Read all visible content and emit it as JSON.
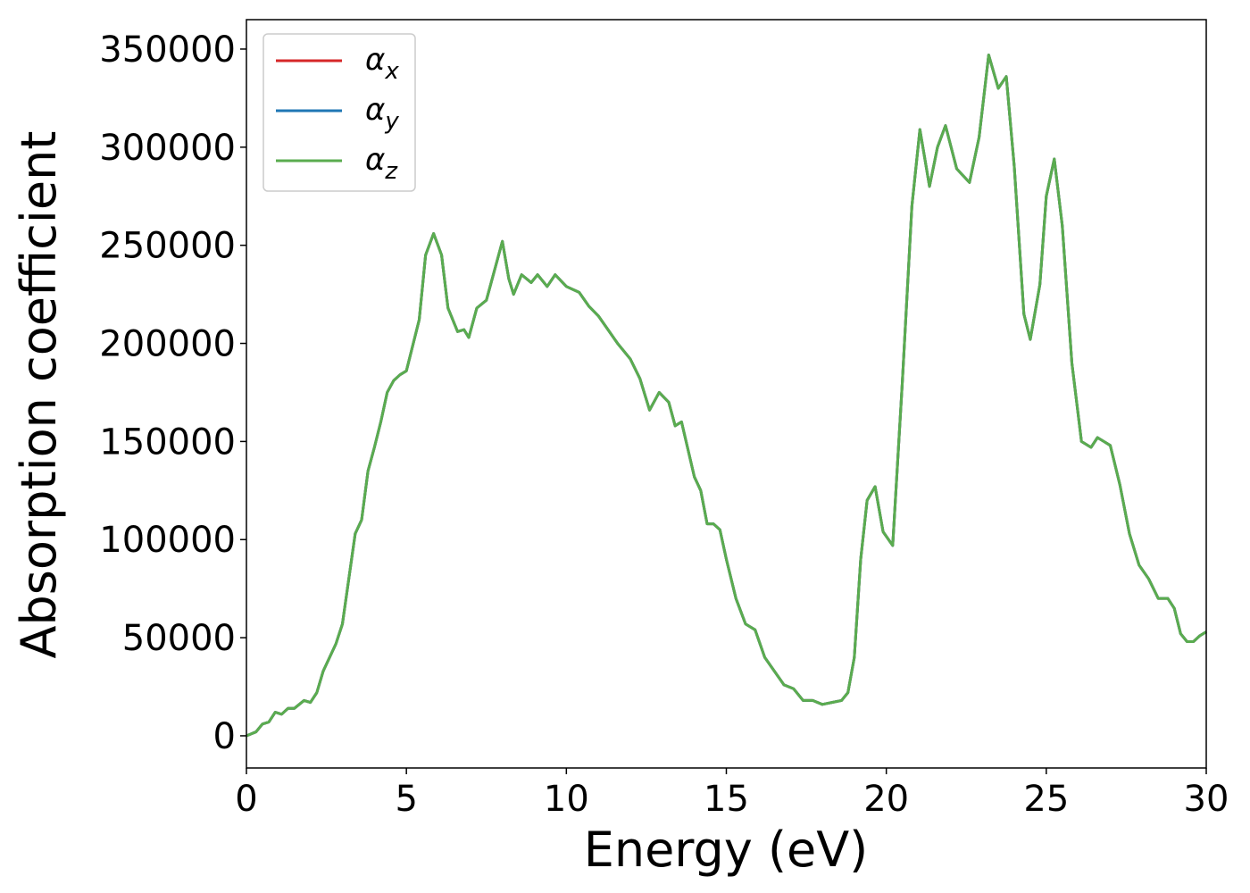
{
  "chart_data": {
    "type": "line",
    "x_label": "Energy (eV)",
    "y_label": "Absorption coefficient",
    "x": [
      0,
      0.3,
      0.5,
      0.7,
      0.9,
      1.1,
      1.3,
      1.5,
      1.8,
      2.0,
      2.2,
      2.4,
      2.6,
      2.8,
      3.0,
      3.2,
      3.4,
      3.6,
      3.8,
      4.0,
      4.2,
      4.4,
      4.6,
      4.8,
      5.0,
      5.2,
      5.4,
      5.6,
      5.85,
      6.1,
      6.3,
      6.6,
      6.8,
      6.95,
      7.2,
      7.5,
      7.8,
      8.0,
      8.2,
      8.35,
      8.6,
      8.9,
      9.1,
      9.4,
      9.65,
      10.0,
      10.4,
      10.7,
      11.0,
      11.3,
      11.6,
      12.0,
      12.3,
      12.6,
      12.9,
      13.2,
      13.4,
      13.6,
      13.8,
      14.0,
      14.2,
      14.4,
      14.6,
      14.8,
      15.0,
      15.3,
      15.6,
      15.9,
      16.2,
      16.5,
      16.8,
      17.1,
      17.4,
      17.7,
      18.0,
      18.3,
      18.6,
      18.8,
      19.0,
      19.2,
      19.4,
      19.65,
      19.9,
      20.2,
      20.5,
      20.8,
      21.05,
      21.35,
      21.6,
      21.85,
      22.2,
      22.6,
      22.9,
      23.2,
      23.5,
      23.75,
      24.0,
      24.3,
      24.5,
      24.8,
      25.0,
      25.25,
      25.5,
      25.8,
      26.1,
      26.4,
      26.6,
      26.8,
      27.0,
      27.3,
      27.6,
      27.9,
      28.2,
      28.5,
      28.8,
      29.0,
      29.2,
      29.4,
      29.6,
      29.8,
      30.0
    ],
    "series": [
      {
        "name": "αx",
        "color": "#d62728",
        "values": [
          0,
          2000,
          6000,
          7000,
          12000,
          11000,
          14000,
          14000,
          18000,
          17000,
          22000,
          33000,
          40000,
          47000,
          57000,
          80000,
          103000,
          110000,
          135000,
          147000,
          160000,
          175000,
          181000,
          184000,
          186000,
          199000,
          212000,
          245000,
          256000,
          245000,
          218000,
          206000,
          207000,
          203000,
          218000,
          222000,
          240000,
          252000,
          233000,
          225000,
          235000,
          231000,
          235000,
          229000,
          235000,
          229000,
          226000,
          219000,
          214000,
          207000,
          200000,
          192000,
          182000,
          166000,
          175000,
          170000,
          158000,
          160000,
          146000,
          132000,
          125000,
          108000,
          108000,
          105000,
          90000,
          70000,
          57000,
          54000,
          40000,
          33000,
          26000,
          24000,
          18000,
          18000,
          16000,
          17000,
          18000,
          22000,
          40000,
          90000,
          120000,
          127000,
          104000,
          97000,
          180000,
          270000,
          309000,
          280000,
          300000,
          311000,
          289000,
          282000,
          305000,
          347000,
          330000,
          336000,
          290000,
          215000,
          202000,
          230000,
          275000,
          294000,
          260000,
          190000,
          150000,
          147000,
          152000,
          150000,
          148000,
          128000,
          103000,
          87000,
          80000,
          70000,
          70000,
          65000,
          52000,
          48000,
          48000,
          51000,
          53000
        ]
      },
      {
        "name": "αy",
        "color": "#1f77b4",
        "values": [
          0,
          2000,
          6000,
          7000,
          12000,
          11000,
          14000,
          14000,
          18000,
          17000,
          22000,
          33000,
          40000,
          47000,
          57000,
          80000,
          103000,
          110000,
          135000,
          147000,
          160000,
          175000,
          181000,
          184000,
          186000,
          199000,
          212000,
          245000,
          256000,
          245000,
          218000,
          206000,
          207000,
          203000,
          218000,
          222000,
          240000,
          252000,
          233000,
          225000,
          235000,
          231000,
          235000,
          229000,
          235000,
          229000,
          226000,
          219000,
          214000,
          207000,
          200000,
          192000,
          182000,
          166000,
          175000,
          170000,
          158000,
          160000,
          146000,
          132000,
          125000,
          108000,
          108000,
          105000,
          90000,
          70000,
          57000,
          54000,
          40000,
          33000,
          26000,
          24000,
          18000,
          18000,
          16000,
          17000,
          18000,
          22000,
          40000,
          90000,
          120000,
          127000,
          104000,
          97000,
          180000,
          270000,
          309000,
          280000,
          300000,
          311000,
          289000,
          282000,
          305000,
          347000,
          330000,
          336000,
          290000,
          215000,
          202000,
          230000,
          275000,
          294000,
          260000,
          190000,
          150000,
          147000,
          152000,
          150000,
          148000,
          128000,
          103000,
          87000,
          80000,
          70000,
          70000,
          65000,
          52000,
          48000,
          48000,
          51000,
          53000
        ]
      },
      {
        "name": "αz",
        "color": "#5aac4f",
        "values": [
          0,
          2000,
          6000,
          7000,
          12000,
          11000,
          14000,
          14000,
          18000,
          17000,
          22000,
          33000,
          40000,
          47000,
          57000,
          80000,
          103000,
          110000,
          135000,
          147000,
          160000,
          175000,
          181000,
          184000,
          186000,
          199000,
          212000,
          245000,
          256000,
          245000,
          218000,
          206000,
          207000,
          203000,
          218000,
          222000,
          240000,
          252000,
          233000,
          225000,
          235000,
          231000,
          235000,
          229000,
          235000,
          229000,
          226000,
          219000,
          214000,
          207000,
          200000,
          192000,
          182000,
          166000,
          175000,
          170000,
          158000,
          160000,
          146000,
          132000,
          125000,
          108000,
          108000,
          105000,
          90000,
          70000,
          57000,
          54000,
          40000,
          33000,
          26000,
          24000,
          18000,
          18000,
          16000,
          17000,
          18000,
          22000,
          40000,
          90000,
          120000,
          127000,
          104000,
          97000,
          180000,
          270000,
          309000,
          280000,
          300000,
          311000,
          289000,
          282000,
          305000,
          347000,
          330000,
          336000,
          290000,
          215000,
          202000,
          230000,
          275000,
          294000,
          260000,
          190000,
          150000,
          147000,
          152000,
          150000,
          148000,
          128000,
          103000,
          87000,
          80000,
          70000,
          70000,
          65000,
          52000,
          48000,
          48000,
          51000,
          53000
        ]
      }
    ],
    "xlim": [
      0,
      30
    ],
    "xticks": [
      0,
      5,
      10,
      15,
      20,
      25,
      30
    ],
    "ylim": [
      -16400,
      365000
    ],
    "yticks": [
      0,
      50000,
      100000,
      150000,
      200000,
      250000,
      300000,
      350000
    ],
    "grid": false,
    "legend": "upper left"
  }
}
